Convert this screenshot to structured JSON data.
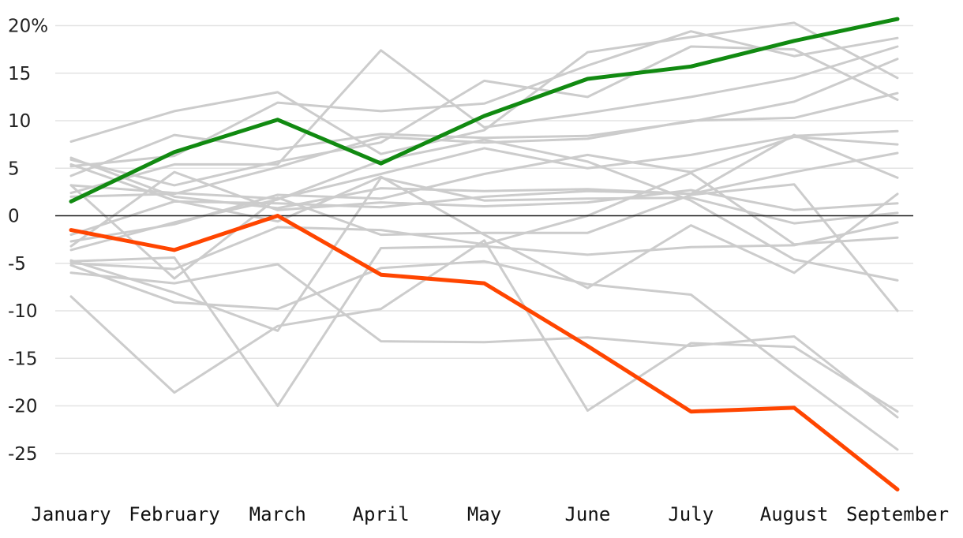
{
  "chart_data": {
    "type": "line",
    "categories": [
      "January",
      "February",
      "March",
      "April",
      "May",
      "June",
      "July",
      "August",
      "September"
    ],
    "ylim": [
      -29,
      21
    ],
    "yticks": [
      20,
      15,
      10,
      5,
      0,
      -5,
      -10,
      -15,
      -20,
      -25
    ],
    "ytick_labels": [
      "20%",
      "15",
      "10",
      "5",
      "0",
      "-5",
      "-10",
      "-15",
      "-20",
      "-25"
    ],
    "grid": true,
    "colors": {
      "highlight_up": "#118a11",
      "highlight_down": "#ff4500",
      "background_series": "#cccccc",
      "gridline": "#e3e3e3",
      "zero_line": "#1a1a1a"
    },
    "background_series": [
      {
        "values": [
          7.8,
          11.0,
          13.0,
          6.5,
          9.0,
          17.2,
          18.8,
          20.3,
          14.5
        ]
      },
      {
        "values": [
          5.2,
          6.3,
          11.9,
          11.0,
          11.8,
          15.8,
          19.4,
          16.8,
          18.7
        ]
      },
      {
        "values": [
          5.9,
          3.2,
          5.7,
          7.7,
          14.2,
          12.5,
          17.8,
          17.5,
          12.2
        ]
      },
      {
        "values": [
          2.4,
          5.4,
          5.4,
          17.4,
          9.3,
          10.8,
          12.5,
          14.5,
          17.8
        ]
      },
      {
        "values": [
          4.2,
          8.5,
          7.0,
          8.6,
          8.2,
          8.4,
          9.9,
          12.0,
          16.5
        ]
      },
      {
        "values": [
          2.0,
          2.3,
          5.1,
          8.3,
          7.7,
          8.1,
          10.0,
          10.3,
          12.9
        ]
      },
      {
        "values": [
          3.2,
          2.4,
          1.8,
          4.4,
          7.1,
          5.0,
          6.4,
          8.4,
          8.9
        ]
      },
      {
        "values": [
          6.1,
          2.0,
          0.8,
          2.9,
          2.6,
          2.8,
          2.3,
          8.5,
          4.0
        ]
      },
      {
        "values": [
          -2.7,
          -0.9,
          2.2,
          1.8,
          4.4,
          6.4,
          4.6,
          8.3,
          7.5
        ]
      },
      {
        "values": [
          -2.0,
          1.5,
          1.3,
          0.9,
          2.0,
          2.6,
          2.3,
          4.6,
          6.6
        ]
      },
      {
        "values": [
          -3.2,
          4.6,
          0.6,
          1.4,
          1.0,
          1.4,
          2.7,
          0.6,
          1.3
        ]
      },
      {
        "values": [
          -3.6,
          -0.7,
          1.7,
          5.8,
          8.0,
          5.7,
          1.6,
          -4.6,
          -6.8
        ]
      },
      {
        "values": [
          5.4,
          1.6,
          -0.6,
          4.1,
          -2.0,
          -7.6,
          -1.0,
          -6.0,
          2.3
        ]
      },
      {
        "values": [
          3.2,
          -6.6,
          1.9,
          -2.0,
          -1.8,
          -1.8,
          2.2,
          3.3,
          -10.0
        ]
      },
      {
        "values": [
          -5.0,
          -5.6,
          -1.2,
          -1.5,
          -3.0,
          0.0,
          4.5,
          -3.0,
          -2.3
        ]
      },
      {
        "values": [
          -4.7,
          -8.1,
          -12.1,
          4.0,
          1.6,
          1.8,
          1.9,
          -0.8,
          0.3
        ]
      },
      {
        "values": [
          -5.2,
          -9.1,
          -9.8,
          -5.5,
          -4.8,
          -7.2,
          -8.3,
          -16.6,
          -24.6
        ]
      },
      {
        "values": [
          -6.0,
          -7.1,
          -5.1,
          -13.2,
          -13.3,
          -12.8,
          -13.7,
          -12.7,
          -21.2
        ]
      },
      {
        "values": [
          -8.5,
          -18.6,
          -11.6,
          -9.8,
          -2.6,
          -20.5,
          -13.4,
          -13.8,
          -20.6
        ]
      },
      {
        "values": [
          -4.8,
          -4.4,
          -20.0,
          -3.4,
          -3.2,
          -4.1,
          -3.3,
          -3.1,
          -0.7
        ]
      }
    ],
    "series": [
      {
        "values": [
          1.5,
          6.7,
          10.1,
          5.5,
          10.5,
          14.4,
          15.7,
          18.4,
          20.7
        ]
      },
      {
        "values": [
          -1.5,
          -3.6,
          0.0,
          -6.2,
          -7.1,
          -13.7,
          -20.6,
          -20.2,
          -28.8
        ]
      }
    ]
  }
}
